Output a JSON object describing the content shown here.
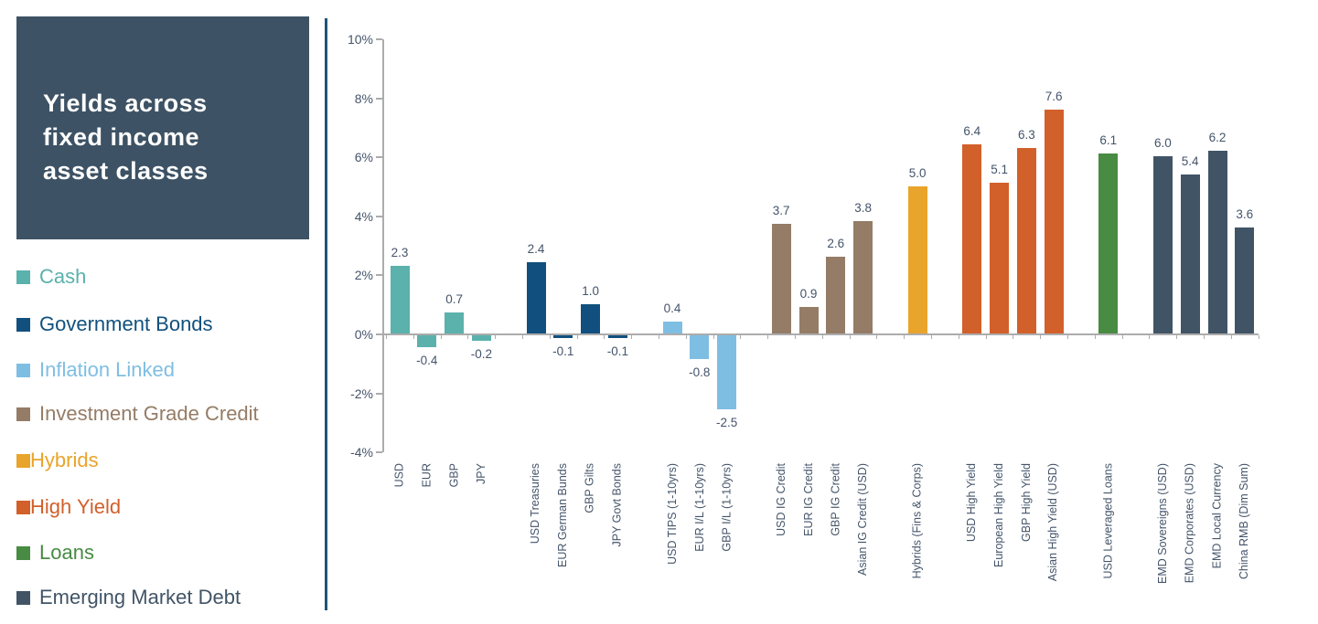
{
  "title_card": {
    "text": "Yields across\nfixed income\nasset classes",
    "background": "#3D5264",
    "text_color": "#FFFFFF"
  },
  "divider_color": "#1D5477",
  "text_color": "#44546A",
  "axis_color": "#ACACAC",
  "legend": {
    "items": [
      {
        "label": "Cash",
        "color": "#5BB1AC",
        "tight": false
      },
      {
        "label": "Government Bonds",
        "color": "#11507E",
        "tight": false
      },
      {
        "label": "Inflation Linked",
        "color": "#7FBEE3",
        "tight": false
      },
      {
        "label": "Investment Grade Credit",
        "color": "#957C66",
        "tight": false
      },
      {
        "label": "Hybrids",
        "color": "#E9A42B",
        "tight": true
      },
      {
        "label": "High Yield",
        "color": "#D2602A",
        "tight": true
      },
      {
        "label": "Loans",
        "color": "#488B43",
        "tight": false
      },
      {
        "label": "Emerging Market Debt",
        "color": "#415466",
        "tight": false
      }
    ]
  },
  "chart_data": {
    "type": "bar",
    "title": "Yields across fixed income asset classes",
    "xlabel": "",
    "ylabel": "",
    "ylim": [
      -4,
      10
    ],
    "grid": false,
    "legend_position": "left",
    "value_label_decimals": 1,
    "ytick_values": [
      10,
      8,
      6,
      4,
      2,
      0,
      -2,
      -4
    ],
    "ytick_labels": [
      "10%",
      "8%",
      "6%",
      "4%",
      "2%",
      "0%",
      "-2%",
      "-4%"
    ],
    "series": [
      {
        "name": "Cash",
        "color": "#5BB1AC",
        "bars": [
          {
            "category": "USD",
            "value": 2.3
          },
          {
            "category": "EUR",
            "value": -0.4
          },
          {
            "category": "GBP",
            "value": 0.7
          },
          {
            "category": "JPY",
            "value": -0.2
          }
        ]
      },
      {
        "name": "Government Bonds",
        "color": "#11507E",
        "bars": [
          {
            "category": "USD Treasuries",
            "value": 2.4
          },
          {
            "category": "EUR German Bunds",
            "value": -0.1
          },
          {
            "category": "GBP Gilts",
            "value": 1.0
          },
          {
            "category": "JPY Govt Bonds",
            "value": -0.1
          }
        ]
      },
      {
        "name": "Inflation Linked",
        "color": "#7FBEE3",
        "bars": [
          {
            "category": "USD TIPS (1-10yrs)",
            "value": 0.4
          },
          {
            "category": "EUR I/L (1-10yrs)",
            "value": -0.8
          },
          {
            "category": "GBP I/L (1-10yrs)",
            "value": -2.5
          }
        ]
      },
      {
        "name": "Investment Grade Credit",
        "color": "#957C66",
        "bars": [
          {
            "category": "USD IG Credit",
            "value": 3.7
          },
          {
            "category": "EUR IG Credit",
            "value": 0.9
          },
          {
            "category": "GBP IG Credit",
            "value": 2.6
          },
          {
            "category": "Asian IG Credit (USD)",
            "value": 3.8
          }
        ]
      },
      {
        "name": "Hybrids",
        "color": "#E9A42B",
        "bars": [
          {
            "category": "Hybrids (Fins & Corps)",
            "value": 5.0
          }
        ]
      },
      {
        "name": "High Yield",
        "color": "#D2602A",
        "bars": [
          {
            "category": "USD High Yield",
            "value": 6.4
          },
          {
            "category": "European High Yield",
            "value": 5.1
          },
          {
            "category": "GBP High Yield",
            "value": 6.3
          },
          {
            "category": "Asian High Yield (USD)",
            "value": 7.6
          }
        ]
      },
      {
        "name": "Loans",
        "color": "#488B43",
        "bars": [
          {
            "category": "USD Leveraged Loans",
            "value": 6.1
          }
        ]
      },
      {
        "name": "Emerging Market Debt",
        "color": "#415466",
        "bars": [
          {
            "category": "EMD Sovereigns (USD)",
            "value": 6.0
          },
          {
            "category": "EMD Corporates (USD)",
            "value": 5.4
          },
          {
            "category": "EMD Local Currency",
            "value": 6.2
          },
          {
            "category": "China RMB (Dim Sum)",
            "value": 3.6
          }
        ]
      }
    ]
  }
}
